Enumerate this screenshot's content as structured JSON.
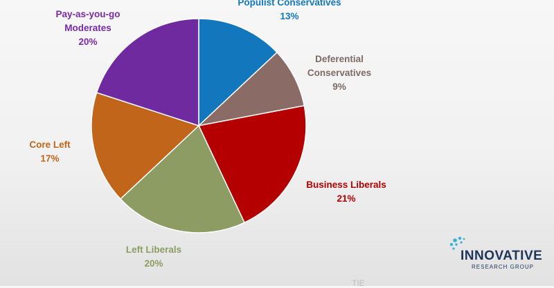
{
  "chart_data": {
    "type": "pie",
    "slices": [
      {
        "label_lines": [
          "Populist Conservatives",
          "13%"
        ],
        "value": 13,
        "color": "#1277bd",
        "label_color": "#1277bd"
      },
      {
        "label_lines": [
          "Deferential",
          "Conservatives",
          "9%"
        ],
        "value": 9,
        "color": "#8a6b66",
        "label_color": "#7e6a66"
      },
      {
        "label_lines": [
          "Business Liberals",
          "21%"
        ],
        "value": 21,
        "color": "#b40000",
        "label_color": "#b40000"
      },
      {
        "label_lines": [
          "Left Liberals",
          "20%"
        ],
        "value": 20,
        "color": "#8c9c63",
        "label_color": "#8c9c63"
      },
      {
        "label_lines": [
          "Core Left",
          "17%"
        ],
        "value": 17,
        "color": "#c0651a",
        "label_color": "#c0651a"
      },
      {
        "label_lines": [
          "Pay-as-you-go",
          "Moderates",
          "20%"
        ],
        "value": 20,
        "color": "#6f2aa0",
        "label_color": "#7a2aa8"
      }
    ],
    "start": "12 o'clock",
    "direction": "clockwise",
    "legend": "none"
  },
  "logo": {
    "name": "INNOVATIVE",
    "subtitle": "RESEARCH GROUP",
    "color": "#1d3557",
    "dots_color": "#3ab0d8"
  },
  "bottom_text": "TIE"
}
